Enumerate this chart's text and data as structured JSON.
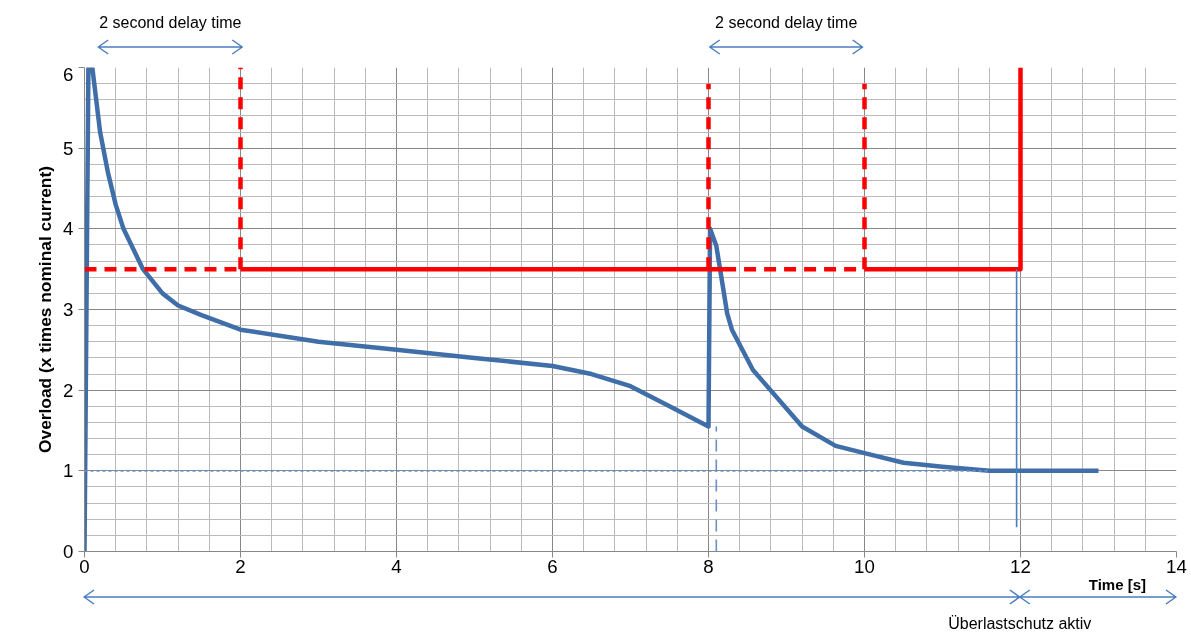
{
  "chart_data": {
    "type": "line",
    "ylabel": "Overload (x times nominal current)",
    "xlabel": "Time [s]",
    "xlim": [
      0,
      14
    ],
    "ylim": [
      0,
      6
    ],
    "xticks": [
      0,
      2,
      4,
      6,
      8,
      10,
      12,
      14
    ],
    "yticks": [
      0,
      1,
      2,
      3,
      4,
      5,
      6
    ],
    "grid": true,
    "annotations": [
      "2 second delay time",
      "2 second delay time",
      "Überlastschutz aktiv"
    ],
    "series": [
      {
        "color": "#3f6ea8",
        "line_style": "solid",
        "x": [
          0,
          0.05,
          0.1,
          0.2,
          0.3,
          0.4,
          0.5,
          0.75,
          1,
          1.2,
          1.5,
          2,
          3,
          4,
          5,
          6,
          6.5,
          7,
          7.5,
          8,
          8.02,
          8.1,
          8.24,
          8.3,
          8.57,
          9.2,
          9.63,
          10,
          10.5,
          11,
          11.6,
          12,
          13
        ],
        "values": [
          0,
          6,
          6,
          5.2,
          4.7,
          4.3,
          4.0,
          3.5,
          3.2,
          3.05,
          2.93,
          2.75,
          2.6,
          2.5,
          2.4,
          2.3,
          2.2,
          2.05,
          1.8,
          1.55,
          4.0,
          3.79,
          2.95,
          2.75,
          2.25,
          1.55,
          1.31,
          1.22,
          1.1,
          1.05,
          1.0,
          1.0,
          1.0
        ]
      },
      {
        "color": "#ff0000",
        "line_style": "dashed",
        "x": [
          0,
          2
        ],
        "values": [
          3.5,
          3.5
        ]
      },
      {
        "color": "#ff0000",
        "line_style": "dashed",
        "x": [
          2,
          2
        ],
        "values": [
          3.5,
          6
        ]
      },
      {
        "color": "#ff0000",
        "line_style": "solid",
        "x": [
          2,
          8.2
        ],
        "values": [
          3.5,
          3.5
        ]
      },
      {
        "color": "#ff0000",
        "line_style": "dashed",
        "x": [
          8.2,
          10
        ],
        "values": [
          3.5,
          3.5
        ]
      },
      {
        "color": "#ff0000",
        "line_style": "dashed",
        "x": [
          8,
          8
        ],
        "values": [
          3.5,
          5.8
        ]
      },
      {
        "color": "#ff0000",
        "line_style": "dashed",
        "x": [
          10,
          10
        ],
        "values": [
          3.5,
          5.8
        ]
      },
      {
        "color": "#ff0000",
        "line_style": "solid",
        "x": [
          10,
          12,
          12
        ],
        "values": [
          3.5,
          3.5,
          6
        ]
      },
      {
        "color": "#6a8fc7",
        "line_style": "dotted",
        "x": [
          0,
          11.6
        ],
        "values": [
          1,
          1
        ]
      },
      {
        "color": "#6a8fc7",
        "line_style": "dashed",
        "x": [
          8.1,
          8.1
        ],
        "values": [
          0,
          1.55
        ]
      },
      {
        "color": "#4a7ebf",
        "line_style": "solid",
        "x": [
          11.95,
          11.95
        ],
        "values": [
          0.3,
          3.5
        ]
      }
    ]
  }
}
